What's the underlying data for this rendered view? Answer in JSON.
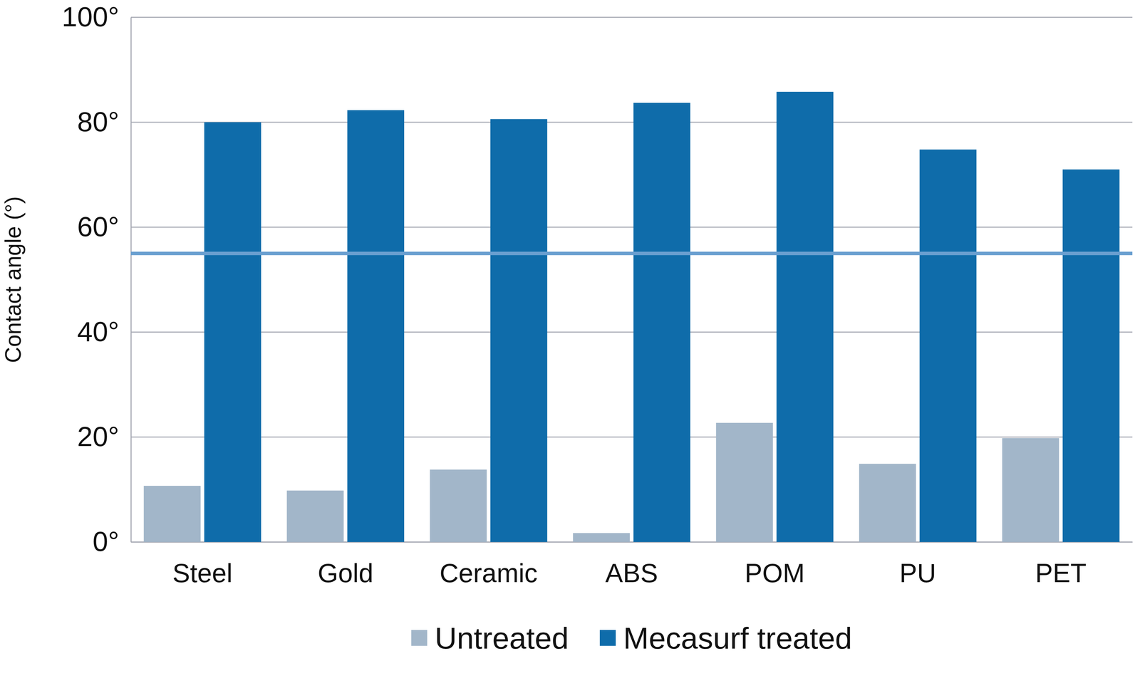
{
  "chart_data": {
    "type": "bar",
    "y_label": "Contact angle (°)",
    "categories": [
      "Steel",
      "Gold",
      "Ceramic",
      "ABS",
      "POM",
      "PU",
      "PET"
    ],
    "series": [
      {
        "name": "Untreated",
        "color": "#a2b6c9",
        "values": [
          10.7,
          9.8,
          13.8,
          1.7,
          22.7,
          14.9,
          19.8
        ]
      },
      {
        "name": "Mecasurf treated",
        "color": "#0f6caa",
        "values": [
          80.0,
          82.3,
          80.6,
          83.7,
          85.8,
          74.8,
          71.0
        ]
      }
    ],
    "reference_line": 55,
    "ylim": [
      0,
      100
    ],
    "yticks": [
      {
        "value": 0,
        "label": "0°"
      },
      {
        "value": 20,
        "label": "20°"
      },
      {
        "value": 40,
        "label": "40°"
      },
      {
        "value": 60,
        "label": "60°"
      },
      {
        "value": 80,
        "label": "80°"
      },
      {
        "value": 100,
        "label": "100°"
      }
    ],
    "grid": true,
    "legend": "bottom"
  }
}
